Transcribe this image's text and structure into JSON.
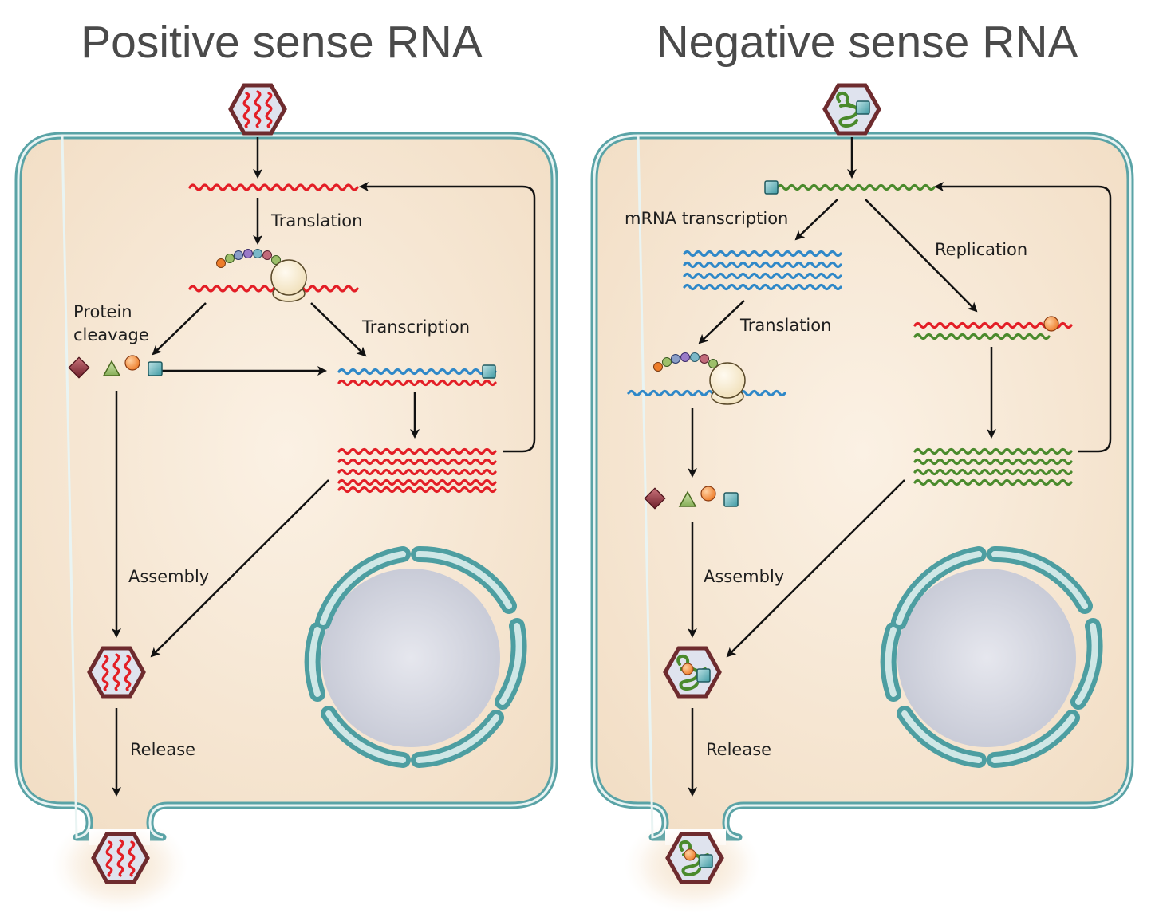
{
  "panels": {
    "positive": {
      "title": "Positive sense RNA",
      "labels": {
        "translation": "Translation",
        "protein_cleavage_1": "Protein",
        "protein_cleavage_2": "cleavage",
        "transcription": "Transcription",
        "assembly": "Assembly",
        "release": "Release"
      }
    },
    "negative": {
      "title": "Negative sense RNA",
      "labels": {
        "mrna_transcription": "mRNA transcription",
        "replication": "Replication",
        "translation": "Translation",
        "assembly": "Assembly",
        "release": "Release"
      }
    }
  },
  "colors": {
    "positive_strand": "#e31e26",
    "negative_strand": "#4a8a2c",
    "mrna_strand": "#2f88c8",
    "membrane": "#5aa3a6",
    "cytoplasm": "#f6e6d2",
    "capsid": "#7a2e32",
    "nucleus": "#c9ccd6"
  }
}
